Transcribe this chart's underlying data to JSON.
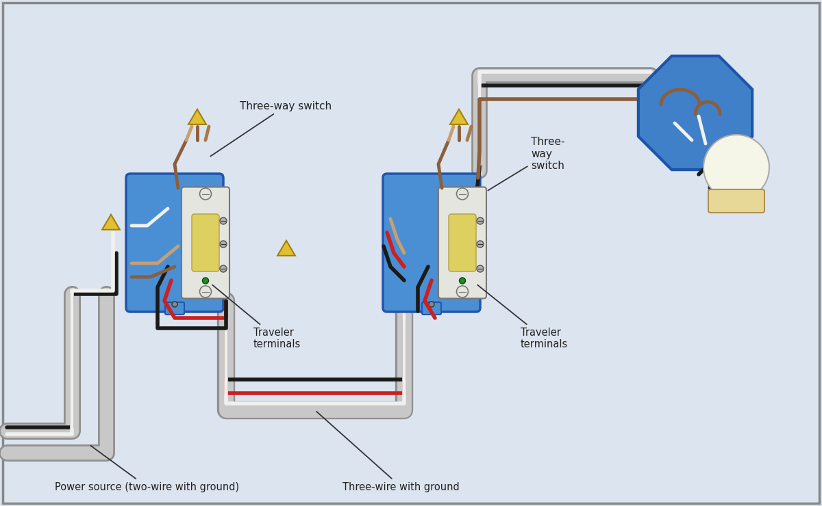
{
  "bg_color": "#dce4f0",
  "border_color": "#888888",
  "labels": {
    "three_way_switch_1": "Three-way switch",
    "three_way_switch_2": "Three-\nway\nswitch",
    "traveler_terminals_1": "Traveler\nterminals",
    "traveler_terminals_2": "Traveler\nterminals",
    "power_source": "Power source (two-wire with ground)",
    "three_wire": "Three-wire with ground"
  },
  "colors": {
    "box_fill": "#4a8fd4",
    "box_stroke": "#2255aa",
    "switch_body": "#e5e5e0",
    "switch_stroke": "#777777",
    "wire_black": "#1a1a1a",
    "wire_white": "#f0f0ee",
    "wire_red": "#cc2020",
    "wire_brown": "#8b5e3c",
    "wire_brown2": "#c8a070",
    "wire_brown3": "#a87848",
    "conduit_dark": "#909090",
    "conduit_light": "#c8c8c8",
    "nut_yellow": "#e0c030",
    "nut_stroke": "#a08010",
    "octagon_fill": "#4080c8",
    "octagon_stroke": "#1a55aa",
    "bulb_fill": "#f5f5e8",
    "bulb_stroke": "#aaaaaa",
    "socket_fill": "#e8d898",
    "text_color": "#222222"
  }
}
